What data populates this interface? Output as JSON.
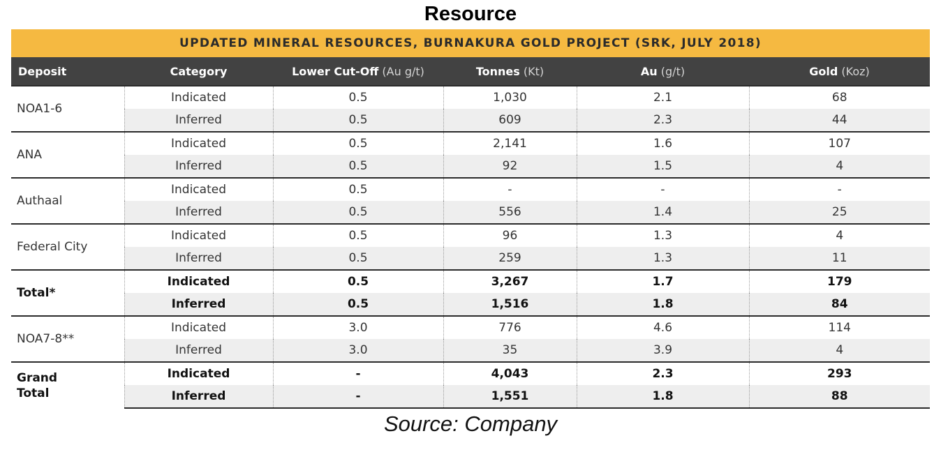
{
  "title": "Resource",
  "banner": "UPDATED MINERAL RESOURCES, BURNAKURA GOLD PROJECT (SRK, JULY 2018)",
  "headers": [
    {
      "label": "Deposit",
      "unit": ""
    },
    {
      "label": "Category",
      "unit": ""
    },
    {
      "label": "Lower Cut-Off",
      "unit": " (Au g/t)"
    },
    {
      "label": "Tonnes",
      "unit": " (Kt)"
    },
    {
      "label": "Au",
      "unit": " (g/t)"
    },
    {
      "label": "Gold",
      "unit": " (Koz)"
    }
  ],
  "deposits": [
    {
      "name": "NOA1-6",
      "bold": false,
      "rows": [
        {
          "category": "Indicated",
          "cutoff": "0.5",
          "tonnes": "1,030",
          "au": "2.1",
          "gold": "68"
        },
        {
          "category": "Inferred",
          "cutoff": "0.5",
          "tonnes": "609",
          "au": "2.3",
          "gold": "44"
        }
      ]
    },
    {
      "name": "ANA",
      "bold": false,
      "rows": [
        {
          "category": "Indicated",
          "cutoff": "0.5",
          "tonnes": "2,141",
          "au": "1.6",
          "gold": "107"
        },
        {
          "category": "Inferred",
          "cutoff": "0.5",
          "tonnes": "92",
          "au": "1.5",
          "gold": "4"
        }
      ]
    },
    {
      "name": "Authaal",
      "bold": false,
      "rows": [
        {
          "category": "Indicated",
          "cutoff": "0.5",
          "tonnes": "-",
          "au": "-",
          "gold": "-"
        },
        {
          "category": "Inferred",
          "cutoff": "0.5",
          "tonnes": "556",
          "au": "1.4",
          "gold": "25"
        }
      ]
    },
    {
      "name": "Federal City",
      "bold": false,
      "rows": [
        {
          "category": "Indicated",
          "cutoff": "0.5",
          "tonnes": "96",
          "au": "1.3",
          "gold": "4"
        },
        {
          "category": "Inferred",
          "cutoff": "0.5",
          "tonnes": "259",
          "au": "1.3",
          "gold": "11"
        }
      ]
    },
    {
      "name": "Total*",
      "bold": true,
      "rows": [
        {
          "category": "Indicated",
          "cutoff": "0.5",
          "tonnes": "3,267",
          "au": "1.7",
          "gold": "179"
        },
        {
          "category": "Inferred",
          "cutoff": "0.5",
          "tonnes": "1,516",
          "au": "1.8",
          "gold": "84"
        }
      ]
    },
    {
      "name": "NOA7-8**",
      "bold": false,
      "rows": [
        {
          "category": "Indicated",
          "cutoff": "3.0",
          "tonnes": "776",
          "au": "4.6",
          "gold": "114"
        },
        {
          "category": "Inferred",
          "cutoff": "3.0",
          "tonnes": "35",
          "au": "3.9",
          "gold": "4"
        }
      ]
    },
    {
      "name": "Grand Total",
      "bold": true,
      "rows": [
        {
          "category": "Indicated",
          "cutoff": "-",
          "tonnes": "4,043",
          "au": "2.3",
          "gold": "293"
        },
        {
          "category": "Inferred",
          "cutoff": "-",
          "tonnes": "1,551",
          "au": "1.8",
          "gold": "88"
        }
      ]
    }
  ],
  "source": "Source: Company"
}
